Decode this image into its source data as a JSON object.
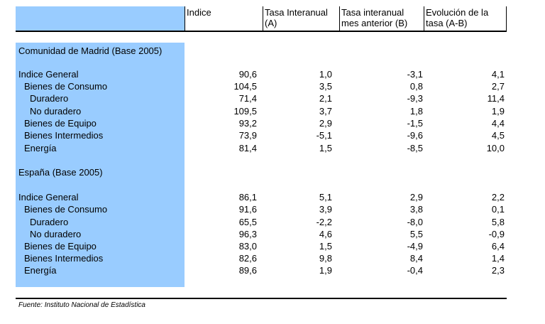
{
  "headers": {
    "indice": "Indice",
    "tasa_interanual": "Tasa Interanual\n(A)",
    "tasa_mes_anterior": "Tasa interanual\nmes anterior (B)",
    "evolucion": "Evolución de la\ntasa (A-B)"
  },
  "madrid": {
    "title": "Comunidad de Madrid (Base 2005)",
    "rows": [
      {
        "label": "Indice General",
        "indice": "90,6",
        "a": "1,0",
        "b": "-3,1",
        "ab": "4,1"
      },
      {
        "label": "Bienes de Consumo",
        "indice": "104,5",
        "a": "3,5",
        "b": "0,8",
        "ab": "2,7"
      },
      {
        "label": "Duradero",
        "indice": "71,4",
        "a": "2,1",
        "b": "-9,3",
        "ab": "11,4"
      },
      {
        "label": "No duradero",
        "indice": "109,5",
        "a": "3,7",
        "b": "1,8",
        "ab": "1,9"
      },
      {
        "label": "Bienes de Equipo",
        "indice": "93,2",
        "a": "2,9",
        "b": "-1,5",
        "ab": "4,4"
      },
      {
        "label": "Bienes Intermedios",
        "indice": "73,9",
        "a": "-5,1",
        "b": "-9,6",
        "ab": "4,5"
      },
      {
        "label": "Energía",
        "indice": "81,4",
        "a": "1,5",
        "b": "-8,5",
        "ab": "10,0"
      }
    ]
  },
  "espana": {
    "title": "España (Base 2005)",
    "rows": [
      {
        "label": "Indice General",
        "indice": "86,1",
        "a": "5,1",
        "b": "2,9",
        "ab": "2,2"
      },
      {
        "label": "Bienes de Consumo",
        "indice": "91,6",
        "a": "3,9",
        "b": "3,8",
        "ab": "0,1"
      },
      {
        "label": "Duradero",
        "indice": "65,5",
        "a": "-2,2",
        "b": "-8,0",
        "ab": "5,8"
      },
      {
        "label": "No duradero",
        "indice": "96,3",
        "a": "4,6",
        "b": "5,5",
        "ab": "-0,9"
      },
      {
        "label": "Bienes de Equipo",
        "indice": "83,0",
        "a": "1,5",
        "b": "-4,9",
        "ab": "6,4"
      },
      {
        "label": "Bienes Intermedios",
        "indice": "82,6",
        "a": "9,8",
        "b": "8,4",
        "ab": "1,4"
      },
      {
        "label": "Energía",
        "indice": "89,6",
        "a": "1,9",
        "b": "-0,4",
        "ab": "2,3"
      }
    ]
  },
  "source": "Fuente: Instituto Nacional de Estadística"
}
